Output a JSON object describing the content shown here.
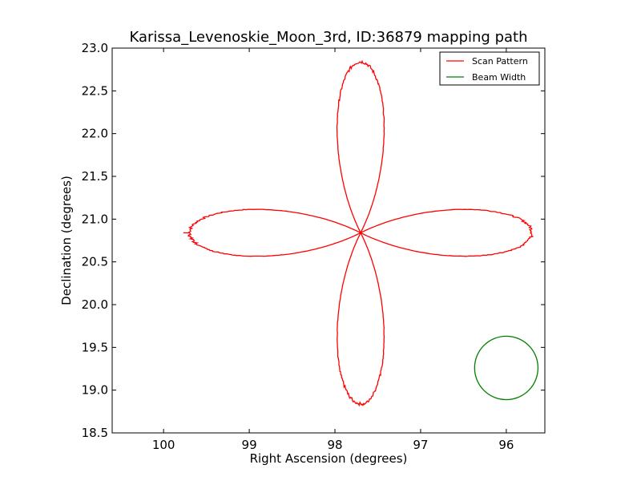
{
  "chart_data": {
    "type": "line",
    "title": "Karissa_Levenoskie_Moon_3rd, ID:36879 mapping path",
    "xlabel": "Right Ascension (degrees)",
    "ylabel": "Declination (degrees)",
    "xlim": [
      100.6,
      95.55
    ],
    "ylim": [
      18.5,
      23.0
    ],
    "x_ticks": [
      100,
      99,
      98,
      97,
      96
    ],
    "x_tick_labels": [
      "100",
      "99",
      "98",
      "97",
      "96"
    ],
    "y_ticks": [
      18.5,
      19.0,
      19.5,
      20.0,
      20.5,
      21.0,
      21.5,
      22.0,
      22.5,
      23.0
    ],
    "y_tick_labels": [
      "18.5",
      "19.0",
      "19.5",
      "20.0",
      "20.5",
      "21.0",
      "21.5",
      "22.0",
      "22.5",
      "23.0"
    ],
    "grid": false,
    "legend_position": "top-right",
    "series": [
      {
        "name": "Scan Pattern",
        "color": "#ff0000",
        "center": [
          97.7,
          20.84
        ],
        "lobe_extent": 2.0,
        "lobe_width": 0.56,
        "start_point": [
          99.77,
          20.84
        ]
      },
      {
        "name": "Beam Width",
        "color": "#008000",
        "center": [
          96.0,
          19.26
        ],
        "radius": 0.37
      }
    ]
  }
}
